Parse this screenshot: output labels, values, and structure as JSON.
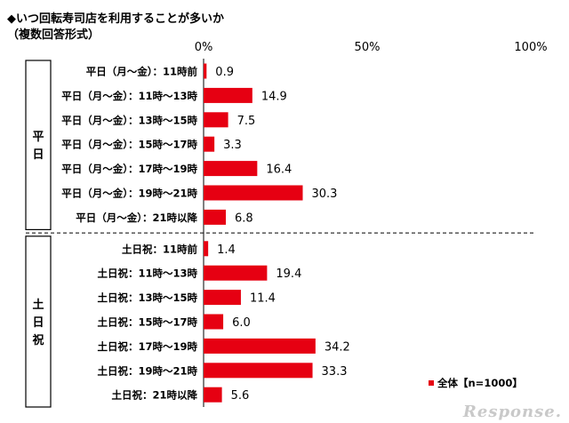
{
  "heading": {
    "line1": "◆いつ回転寿司店を利用することが多いか",
    "line2": "（複数回答形式）"
  },
  "chart_data": {
    "type": "bar",
    "orientation": "horizontal",
    "xlim": [
      0,
      100
    ],
    "x_ticks": [
      "0%",
      "50%",
      "100%"
    ],
    "groups": [
      {
        "label": "平日",
        "categories": [
          "平日（月～金）：11時前",
          "平日（月～金）：11時～13時",
          "平日（月～金）：13時～15時",
          "平日（月～金）：15時～17時",
          "平日（月～金）：17時～19時",
          "平日（月～金）：19時～21時",
          "平日（月～金）：21時以降"
        ],
        "values": [
          0.9,
          14.9,
          7.5,
          3.3,
          16.4,
          30.3,
          6.8
        ]
      },
      {
        "label": "土日祝",
        "categories": [
          "土日祝：11時前",
          "土日祝：11時～13時",
          "土日祝：13時～15時",
          "土日祝：15時～17時",
          "土日祝：17時～19時",
          "土日祝：19時～21時",
          "土日祝：21時以降"
        ],
        "values": [
          1.4,
          19.4,
          11.4,
          6.0,
          34.2,
          33.3,
          5.6
        ]
      }
    ],
    "series": [
      {
        "name": "全体【n=1000】",
        "color": "#e60012"
      }
    ],
    "legend_position": "bottom-right",
    "grid": false
  },
  "watermark_text": "Response."
}
